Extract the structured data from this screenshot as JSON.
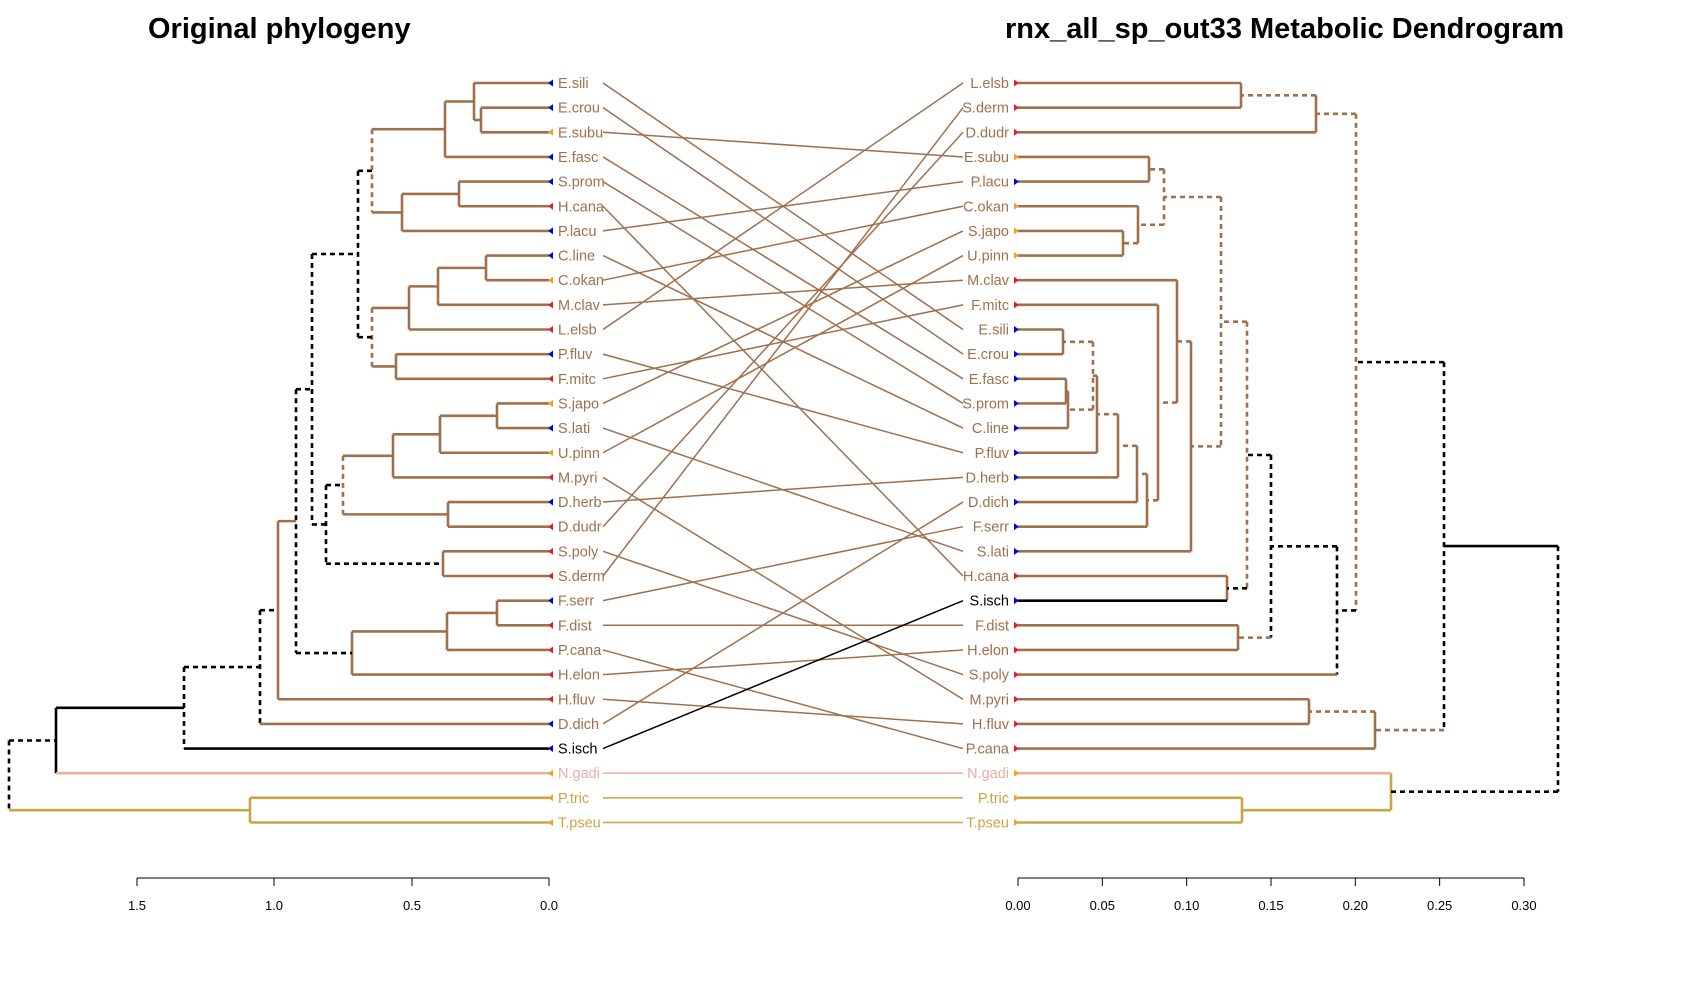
{
  "titles": {
    "left": "Original phylogeny",
    "right": "rnx_all_sp_out33 Metabolic Dendrogram"
  },
  "colors": {
    "brown": "#A0704D",
    "dashed_brown": "#A0704D",
    "black": "#000000",
    "pink": "#E8B0A0",
    "gold": "#C8A646",
    "marker_blue": "#0000E0",
    "marker_red": "#E02020",
    "marker_orange": "#F0A020"
  },
  "left_axis": {
    "ticks": [
      "1.5",
      "1.0",
      "0.5",
      "0.0"
    ]
  },
  "right_axis": {
    "ticks": [
      "0.00",
      "0.05",
      "0.10",
      "0.15",
      "0.20",
      "0.25",
      "0.30"
    ]
  },
  "left_leaves": [
    {
      "label": "E.sili",
      "marker": "blue",
      "color": "brown"
    },
    {
      "label": "E.crou",
      "marker": "blue",
      "color": "brown"
    },
    {
      "label": "E.subu",
      "marker": "orange",
      "color": "brown"
    },
    {
      "label": "E.fasc",
      "marker": "blue",
      "color": "brown"
    },
    {
      "label": "S.prom",
      "marker": "blue",
      "color": "brown"
    },
    {
      "label": "H.cana",
      "marker": "red",
      "color": "brown"
    },
    {
      "label": "P.lacu",
      "marker": "blue",
      "color": "brown"
    },
    {
      "label": "C.line",
      "marker": "blue",
      "color": "brown"
    },
    {
      "label": "C.okan",
      "marker": "orange",
      "color": "brown"
    },
    {
      "label": "M.clav",
      "marker": "red",
      "color": "brown"
    },
    {
      "label": "L.elsb",
      "marker": "red",
      "color": "brown"
    },
    {
      "label": "P.fluv",
      "marker": "blue",
      "color": "brown"
    },
    {
      "label": "F.mitc",
      "marker": "red",
      "color": "brown"
    },
    {
      "label": "S.japo",
      "marker": "orange",
      "color": "brown"
    },
    {
      "label": "S.lati",
      "marker": "blue",
      "color": "brown"
    },
    {
      "label": "U.pinn",
      "marker": "orange",
      "color": "brown"
    },
    {
      "label": "M.pyri",
      "marker": "red",
      "color": "brown"
    },
    {
      "label": "D.herb",
      "marker": "blue",
      "color": "brown"
    },
    {
      "label": "D.dudr",
      "marker": "red",
      "color": "brown"
    },
    {
      "label": "S.poly",
      "marker": "red",
      "color": "brown"
    },
    {
      "label": "S.derm",
      "marker": "red",
      "color": "brown"
    },
    {
      "label": "F.serr",
      "marker": "blue",
      "color": "brown"
    },
    {
      "label": "F.dist",
      "marker": "red",
      "color": "brown"
    },
    {
      "label": "P.cana",
      "marker": "red",
      "color": "brown"
    },
    {
      "label": "H.elon",
      "marker": "red",
      "color": "brown"
    },
    {
      "label": "H.fluv",
      "marker": "red",
      "color": "brown"
    },
    {
      "label": "D.dich",
      "marker": "blue",
      "color": "brown"
    },
    {
      "label": "S.isch",
      "marker": "blue",
      "color": "black"
    },
    {
      "label": "N.gadi",
      "marker": "orange",
      "color": "pink"
    },
    {
      "label": "P.tric",
      "marker": "orange",
      "color": "gold"
    },
    {
      "label": "T.pseu",
      "marker": "orange",
      "color": "gold"
    }
  ],
  "right_leaves": [
    {
      "label": "L.elsb",
      "marker": "red",
      "color": "brown"
    },
    {
      "label": "S.derm",
      "marker": "red",
      "color": "brown"
    },
    {
      "label": "D.dudr",
      "marker": "red",
      "color": "brown"
    },
    {
      "label": "E.subu",
      "marker": "orange",
      "color": "brown"
    },
    {
      "label": "P.lacu",
      "marker": "blue",
      "color": "brown"
    },
    {
      "label": "C.okan",
      "marker": "orange",
      "color": "brown"
    },
    {
      "label": "S.japo",
      "marker": "orange",
      "color": "brown"
    },
    {
      "label": "U.pinn",
      "marker": "orange",
      "color": "brown"
    },
    {
      "label": "M.clav",
      "marker": "red",
      "color": "brown"
    },
    {
      "label": "F.mitc",
      "marker": "red",
      "color": "brown"
    },
    {
      "label": "E.sili",
      "marker": "blue",
      "color": "brown"
    },
    {
      "label": "E.crou",
      "marker": "blue",
      "color": "brown"
    },
    {
      "label": "E.fasc",
      "marker": "blue",
      "color": "brown"
    },
    {
      "label": "S.prom",
      "marker": "blue",
      "color": "brown"
    },
    {
      "label": "C.line",
      "marker": "blue",
      "color": "brown"
    },
    {
      "label": "P.fluv",
      "marker": "blue",
      "color": "brown"
    },
    {
      "label": "D.herb",
      "marker": "blue",
      "color": "brown"
    },
    {
      "label": "D.dich",
      "marker": "blue",
      "color": "brown"
    },
    {
      "label": "F.serr",
      "marker": "blue",
      "color": "brown"
    },
    {
      "label": "S.lati",
      "marker": "blue",
      "color": "brown"
    },
    {
      "label": "H.cana",
      "marker": "red",
      "color": "brown"
    },
    {
      "label": "S.isch",
      "marker": "blue",
      "color": "black"
    },
    {
      "label": "F.dist",
      "marker": "red",
      "color": "brown"
    },
    {
      "label": "H.elon",
      "marker": "red",
      "color": "brown"
    },
    {
      "label": "S.poly",
      "marker": "red",
      "color": "brown"
    },
    {
      "label": "M.pyri",
      "marker": "red",
      "color": "brown"
    },
    {
      "label": "H.fluv",
      "marker": "red",
      "color": "brown"
    },
    {
      "label": "P.cana",
      "marker": "red",
      "color": "brown"
    },
    {
      "label": "N.gadi",
      "marker": "orange",
      "color": "pink"
    },
    {
      "label": "P.tric",
      "marker": "orange",
      "color": "gold"
    },
    {
      "label": "T.pseu",
      "marker": "orange",
      "color": "gold"
    }
  ]
}
